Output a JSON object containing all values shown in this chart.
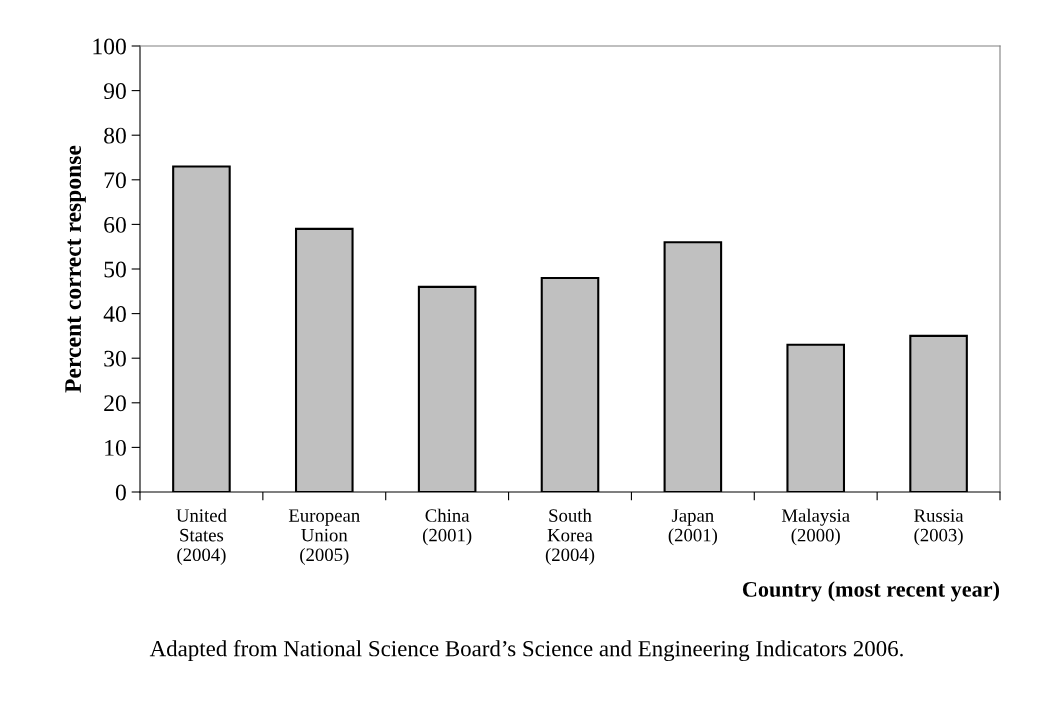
{
  "chart_data": {
    "type": "bar",
    "categories": [
      "United\nStates\n(2004)",
      "European\nUnion\n(2005)",
      "China\n(2001)",
      "South\nKorea\n(2004)",
      "Japan\n(2001)",
      "Malaysia\n(2000)",
      "Russia\n(2003)"
    ],
    "values": [
      73,
      59,
      46,
      48,
      56,
      33,
      35
    ],
    "color": "#c0c0c0",
    "ylabel": "Percent correct response",
    "xlabel": "Country (most recent year)",
    "ylim": [
      0,
      100
    ],
    "yticks": [
      0,
      10,
      20,
      30,
      40,
      50,
      60,
      70,
      80,
      90,
      100
    ],
    "annotations": [
      "Adapted from National Science Board’s Science and Engineering Indicators 2006."
    ]
  }
}
